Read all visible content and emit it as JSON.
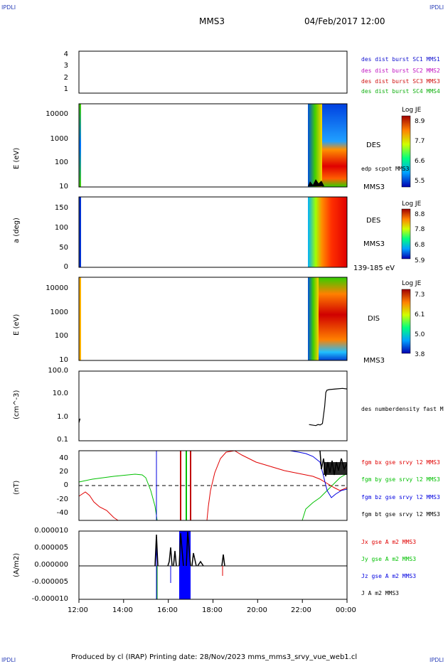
{
  "header": {
    "corner_tl": "IPDLI",
    "corner_tr": "IPDLI",
    "corner_bl": "IPDLI",
    "corner_br": "IPDLI",
    "spacecraft": "MMS3",
    "datetime": "04/Feb/2017 12:00"
  },
  "footer": {
    "credit": "Produced by cl (IRAP)   Printing date: 28/Nov/2023   mms_mms3_srvy_vue_web1.cl"
  },
  "colors": {
    "mms1": "#1010d0",
    "mms2": "#c010c0",
    "mms3": "#d01010",
    "mms4": "#10b010",
    "bx": "#e00000",
    "by": "#00c000",
    "bz": "#0000e0",
    "bt": "#000000"
  },
  "chart_data": [
    {
      "type": "table",
      "panel": "burst-availability",
      "y_ticks": [
        "4",
        "3",
        "2",
        "1"
      ],
      "legend": [
        {
          "name": "des dist burst SC1 MMS1",
          "color": "#1010d0"
        },
        {
          "name": "des dist burst SC2 MMS2",
          "color": "#c010c0"
        },
        {
          "name": "des dist burst SC3 MMS3",
          "color": "#d01010"
        },
        {
          "name": "des dist burst SC4 MMS4",
          "color": "#10b010"
        }
      ]
    },
    {
      "type": "heatmap",
      "panel": "des-energy-spectrogram",
      "ylabel": "E (eV)",
      "y_scale": "log",
      "y_ticks": [
        "10000",
        "1000",
        "100",
        "10"
      ],
      "side_labels": [
        "DES",
        "edp scpot MMS3",
        "MMS3"
      ],
      "colorbar": {
        "title": "Log JE",
        "ticks": [
          "8.9",
          "7.7",
          "6.6",
          "5.5"
        ]
      }
    },
    {
      "type": "heatmap",
      "panel": "des-pitch-angle",
      "ylabel": "a (deg)",
      "y_ticks": [
        "150",
        "100",
        "50",
        "0"
      ],
      "side_labels": [
        "DES",
        "MMS3",
        "139-185 eV"
      ],
      "colorbar": {
        "title": "Log JE",
        "ticks": [
          "8.8",
          "7.8",
          "6.8",
          "5.9"
        ]
      }
    },
    {
      "type": "heatmap",
      "panel": "dis-energy-spectrogram",
      "ylabel": "E (eV)",
      "y_scale": "log",
      "y_ticks": [
        "10000",
        "1000",
        "100",
        "10"
      ],
      "side_labels": [
        "DIS",
        "MMS3"
      ],
      "colorbar": {
        "title": "Log JE",
        "ticks": [
          "7.3",
          "6.1",
          "5.0",
          "3.8"
        ]
      }
    },
    {
      "type": "line",
      "panel": "density",
      "ylabel": "(cm^-3)",
      "y_scale": "log",
      "ylim": [
        0.1,
        100
      ],
      "y_ticks": [
        "100.0",
        "10.0",
        "1.0",
        "0.1"
      ],
      "legend": [
        {
          "name": "des numberdensity fast M",
          "color": "#000000"
        }
      ],
      "series": [
        {
          "name": "des numberdensity fast M",
          "x": [
            0.0,
            0.05,
            10.3,
            10.6,
            10.7,
            10.8,
            10.9,
            11.0,
            11.05,
            11.1,
            11.2,
            11.5,
            11.8,
            12.0
          ],
          "y": [
            0.6,
            0.9,
            0.5,
            0.45,
            0.5,
            0.48,
            0.55,
            3,
            12,
            15,
            16,
            17,
            18,
            17
          ]
        }
      ]
    },
    {
      "type": "line",
      "panel": "magnetic-field",
      "ylabel": "(nT)",
      "ylim": [
        -50,
        50
      ],
      "y_ticks": [
        "40",
        "20",
        "0",
        "-20",
        "-40"
      ],
      "legend": [
        {
          "name": "fgm bx gse srvy l2 MMS3",
          "color": "#e00000"
        },
        {
          "name": "fgm by gse srvy l2 MMS3",
          "color": "#00c000"
        },
        {
          "name": "fgm bz gse srvy l2 MMS3",
          "color": "#0000e0"
        },
        {
          "name": "fgm bt gse srvy l2 MMS3",
          "color": "#000000"
        }
      ]
    },
    {
      "type": "line",
      "panel": "current-density",
      "ylabel": "(A/m2)",
      "ylim": [
        -1e-05,
        1e-05
      ],
      "y_ticks": [
        "0.000010",
        "0.000005",
        "0.000000",
        "-0.000005",
        "-0.000010"
      ],
      "legend": [
        {
          "name": "Jx gse A m2 MMS3",
          "color": "#e00000"
        },
        {
          "name": "Jy gse A m2 MMS3",
          "color": "#00c000"
        },
        {
          "name": "Jz gse A m2 MMS3",
          "color": "#0000e0"
        },
        {
          "name": "J A m2 MMS3",
          "color": "#000000"
        }
      ]
    }
  ],
  "x_axis": {
    "ticks": [
      "12:00",
      "14:00",
      "16:00",
      "18:00",
      "20:00",
      "22:00",
      "00:00"
    ],
    "range_hours": [
      0,
      12
    ]
  }
}
